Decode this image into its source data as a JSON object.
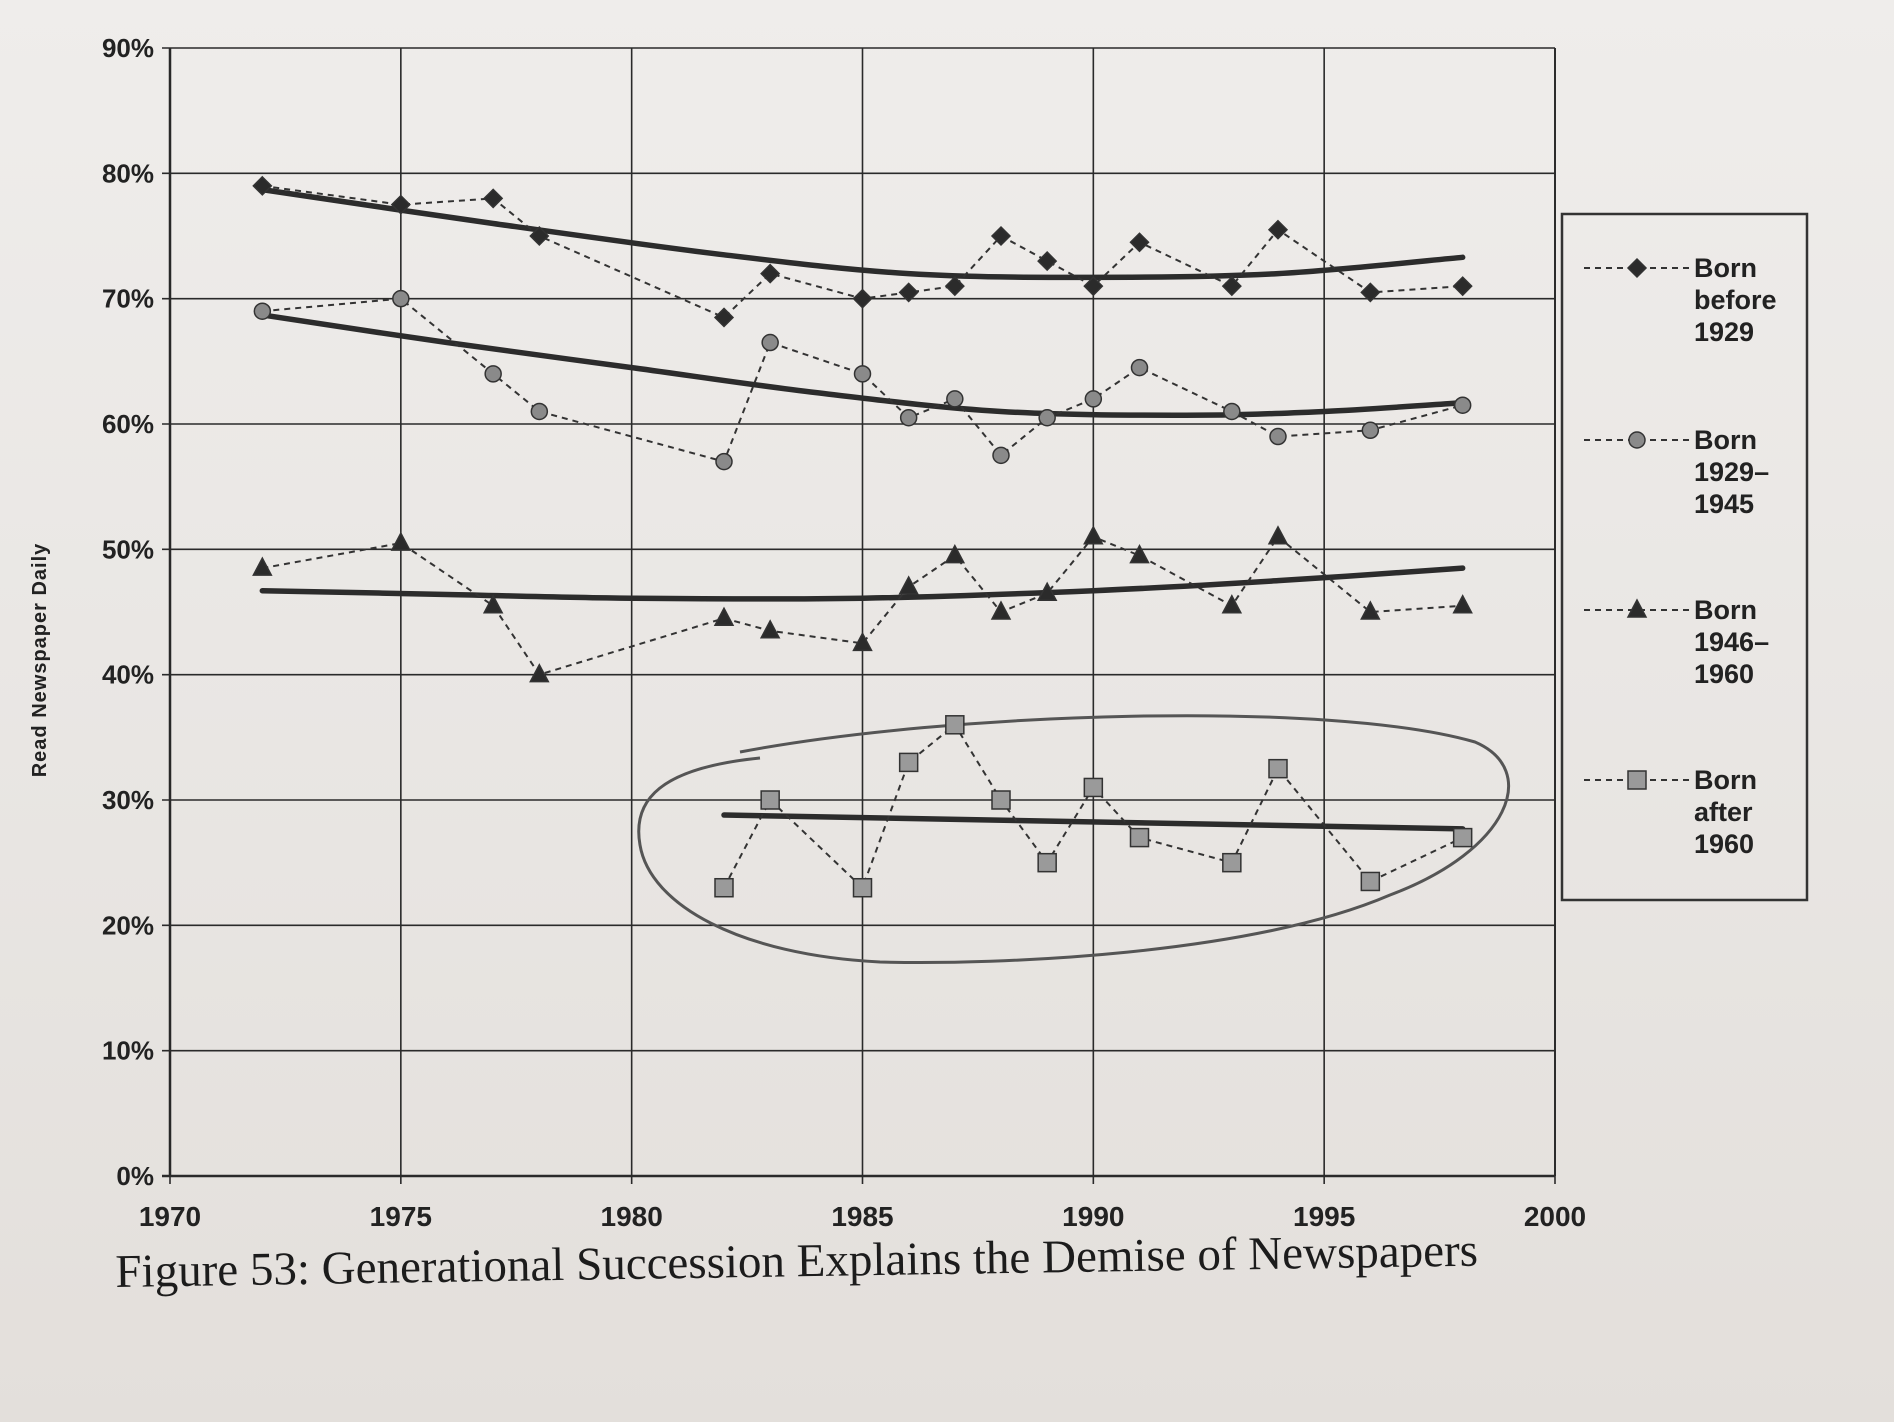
{
  "caption": "Figure 53: Generational Succession Explains the Demise of Newspapers",
  "chart_data": {
    "type": "line",
    "title": "",
    "ylabel": "Read Newspaper Daily",
    "xlabel": "",
    "xlim": [
      1970,
      2000
    ],
    "ylim": [
      0,
      90
    ],
    "x_ticks": [
      "1970",
      "1975",
      "1980",
      "1985",
      "1990",
      "1995",
      "2000"
    ],
    "y_ticks": [
      "0%",
      "10%",
      "20%",
      "30%",
      "40%",
      "50%",
      "60%",
      "70%",
      "80%",
      "90%"
    ],
    "grid": true,
    "legend_position": "right",
    "annotation": "hand-drawn ellipse circling the Born after 1960 series",
    "series": [
      {
        "name": "Born before 1929",
        "legend_lines": [
          "Born",
          "before",
          "1929"
        ],
        "marker": "diamond",
        "x": [
          1972,
          1975,
          1977,
          1978,
          1982,
          1983,
          1985,
          1986,
          1987,
          1988,
          1989,
          1990,
          1991,
          1993,
          1994,
          1996,
          1998
        ],
        "y": [
          79,
          77.5,
          78,
          75,
          68.5,
          72,
          70,
          70.5,
          71,
          75,
          73,
          71,
          74.5,
          71,
          75.5,
          70.5,
          71
        ],
        "trend": [
          [
            1972,
            78.7
          ],
          [
            1977,
            76
          ],
          [
            1982,
            73.5
          ],
          [
            1986,
            72
          ],
          [
            1990,
            71.7
          ],
          [
            1994,
            72
          ],
          [
            1998,
            73.3
          ]
        ]
      },
      {
        "name": "Born 1929–1945",
        "legend_lines": [
          "Born",
          "1929–",
          "1945"
        ],
        "marker": "circle",
        "x": [
          1972,
          1975,
          1977,
          1978,
          1982,
          1983,
          1985,
          1986,
          1987,
          1988,
          1989,
          1990,
          1991,
          1993,
          1994,
          1996,
          1998
        ],
        "y": [
          69,
          70,
          64,
          61,
          57,
          66.5,
          64,
          60.5,
          62,
          57.5,
          60.5,
          62,
          64.5,
          61,
          59,
          59.5,
          61.5
        ],
        "trend": [
          [
            1972,
            68.7
          ],
          [
            1976,
            66.5
          ],
          [
            1980,
            64.5
          ],
          [
            1984,
            62.5
          ],
          [
            1988,
            61
          ],
          [
            1992,
            60.7
          ],
          [
            1995,
            61
          ],
          [
            1998,
            61.7
          ]
        ]
      },
      {
        "name": "Born 1946–1960",
        "legend_lines": [
          "Born",
          "1946–",
          "1960"
        ],
        "marker": "triangle",
        "x": [
          1972,
          1975,
          1977,
          1978,
          1982,
          1983,
          1985,
          1986,
          1987,
          1988,
          1989,
          1990,
          1991,
          1993,
          1994,
          1996,
          1998
        ],
        "y": [
          48.5,
          50.5,
          45.5,
          40,
          44.5,
          43.5,
          42.5,
          47,
          49.5,
          45,
          46.5,
          51,
          49.5,
          45.5,
          51,
          45,
          45.5
        ],
        "trend": [
          [
            1972,
            46.7
          ],
          [
            1976,
            46.4
          ],
          [
            1980,
            46.1
          ],
          [
            1985,
            46.1
          ],
          [
            1990,
            46.7
          ],
          [
            1994,
            47.5
          ],
          [
            1998,
            48.5
          ]
        ]
      },
      {
        "name": "Born after 1960",
        "legend_lines": [
          "Born",
          "after",
          "1960"
        ],
        "marker": "square",
        "x": [
          1982,
          1983,
          1985,
          1986,
          1987,
          1988,
          1989,
          1990,
          1991,
          1993,
          1994,
          1996,
          1998
        ],
        "y": [
          23,
          30,
          23,
          33,
          36,
          30,
          25,
          31,
          27,
          25,
          32.5,
          23.5,
          27
        ],
        "trend": [
          [
            1982,
            28.8
          ],
          [
            1998,
            27.7
          ]
        ]
      }
    ]
  }
}
